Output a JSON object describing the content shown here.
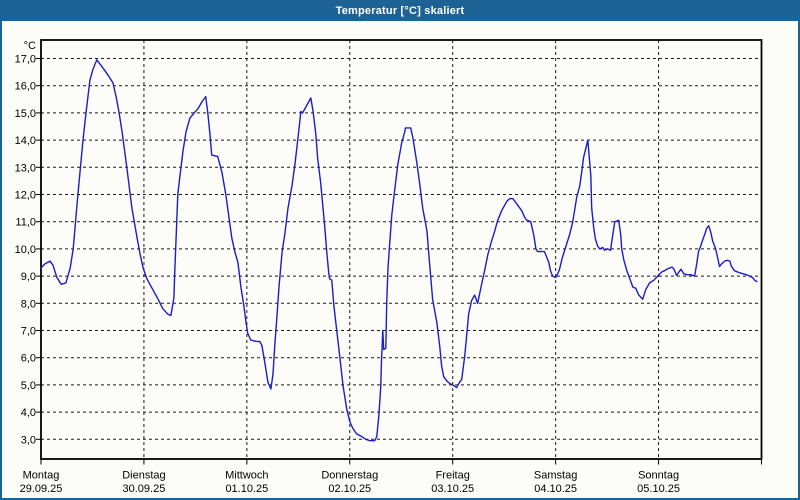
{
  "window": {
    "title": "Temperatur [°C] skaliert",
    "titlebar_color": "#1d6295",
    "border_color": "#1d6295",
    "background_color": "#fcfdf8"
  },
  "chart_data": {
    "type": "line",
    "title": "Temperatur [°C] skaliert",
    "grid": "dashed",
    "legend": "none",
    "line_color": "#1c1cc8",
    "grid_color": "#1a1a1a",
    "y_axis": {
      "unit": "°C",
      "range": [
        3,
        17
      ],
      "tick_values": [
        17,
        16,
        15,
        14,
        13,
        12,
        11,
        10,
        9,
        8,
        7,
        6,
        5,
        4,
        3
      ],
      "tick_labels": [
        "17,0",
        "16,0",
        "15,0",
        "14,0",
        "13,0",
        "12,0",
        "11,0",
        "10,0",
        "9,0",
        "8,0",
        "7,0",
        "6,0",
        "5,0",
        "4,0",
        "3,0"
      ]
    },
    "x_axis": {
      "num_days": 7,
      "hours_per_day": 24,
      "tick_labels": [
        {
          "weekday": "Montag",
          "date": "29.09.25"
        },
        {
          "weekday": "Dienstag",
          "date": "30.09.25"
        },
        {
          "weekday": "Mittwoch",
          "date": "01.10.25"
        },
        {
          "weekday": "Donnerstag",
          "date": "02.10.25"
        },
        {
          "weekday": "Freitag",
          "date": "03.10.25"
        },
        {
          "weekday": "Samstag",
          "date": "04.10.25"
        },
        {
          "weekday": "Sonntag",
          "date": "05.10.25"
        }
      ]
    },
    "series": [
      {
        "name": "Temperatur",
        "unit": "°C",
        "x_unit": "hours_since_monday_00",
        "points": [
          [
            0,
            9.3
          ],
          [
            0.9,
            9.45
          ],
          [
            2.1,
            9.55
          ],
          [
            2.8,
            9.4
          ],
          [
            3.7,
            8.95
          ],
          [
            4.7,
            8.7
          ],
          [
            5.8,
            8.75
          ],
          [
            6.8,
            9.3
          ],
          [
            7.5,
            10
          ],
          [
            8.6,
            12
          ],
          [
            9.8,
            14
          ],
          [
            10.5,
            15
          ],
          [
            11.4,
            16.2
          ],
          [
            12.1,
            16.6
          ],
          [
            13,
            16.95
          ],
          [
            14,
            16.75
          ],
          [
            14.9,
            16.55
          ],
          [
            15.8,
            16.35
          ],
          [
            16.8,
            16.1
          ],
          [
            17.5,
            15.6
          ],
          [
            18.2,
            15
          ],
          [
            18.9,
            14.3
          ],
          [
            20,
            13
          ],
          [
            21.2,
            11.5
          ],
          [
            22.4,
            10.4
          ],
          [
            23.1,
            9.8
          ],
          [
            23.8,
            9.3
          ],
          [
            24.7,
            8.9
          ],
          [
            25.9,
            8.55
          ],
          [
            27.3,
            8.15
          ],
          [
            28.4,
            7.8
          ],
          [
            29.6,
            7.6
          ],
          [
            30.3,
            7.55
          ],
          [
            31,
            8.2
          ],
          [
            31.2,
            9.2
          ],
          [
            31.5,
            10.4
          ],
          [
            31.9,
            12
          ],
          [
            32.4,
            12.7
          ],
          [
            33.1,
            13.6
          ],
          [
            33.8,
            14.3
          ],
          [
            34.7,
            14.8
          ],
          [
            35.7,
            15
          ],
          [
            36.6,
            15.15
          ],
          [
            37.5,
            15.4
          ],
          [
            38.4,
            15.6
          ],
          [
            38.9,
            15
          ],
          [
            39.4,
            14.2
          ],
          [
            39.8,
            13.45
          ],
          [
            41.2,
            13.4
          ],
          [
            42.2,
            12.8
          ],
          [
            43.1,
            12
          ],
          [
            43.8,
            11.2
          ],
          [
            44.5,
            10.4
          ],
          [
            45.2,
            9.9
          ],
          [
            45.9,
            9.5
          ],
          [
            46.6,
            8.6
          ],
          [
            47.3,
            7.9
          ],
          [
            47.8,
            7.3
          ],
          [
            48.2,
            6.9
          ],
          [
            48.9,
            6.65
          ],
          [
            50.1,
            6.6
          ],
          [
            51,
            6.6
          ],
          [
            51.5,
            6.45
          ],
          [
            52.2,
            5.8
          ],
          [
            52.9,
            5.1
          ],
          [
            53.6,
            4.85
          ],
          [
            54.1,
            5.4
          ],
          [
            54.5,
            6.4
          ],
          [
            55,
            7.5
          ],
          [
            55.5,
            8.6
          ],
          [
            56.2,
            9.85
          ],
          [
            56.9,
            10.6
          ],
          [
            57.6,
            11.5
          ],
          [
            58.5,
            12.3
          ],
          [
            59.2,
            13.1
          ],
          [
            59.9,
            14.05
          ],
          [
            60.6,
            15.05
          ],
          [
            61,
            15
          ],
          [
            61.7,
            15.2
          ],
          [
            62.9,
            15.55
          ],
          [
            63.4,
            15.1
          ],
          [
            64.1,
            14.2
          ],
          [
            64.5,
            13.35
          ],
          [
            65.2,
            12.45
          ],
          [
            65.7,
            11.6
          ],
          [
            66.2,
            10.75
          ],
          [
            66.6,
            9.95
          ],
          [
            67.1,
            9.1
          ],
          [
            67.3,
            8.9
          ],
          [
            67.8,
            8.85
          ],
          [
            68.3,
            7.9
          ],
          [
            69,
            6.95
          ],
          [
            69.7,
            6
          ],
          [
            70.4,
            5
          ],
          [
            71.3,
            4.1
          ],
          [
            72,
            3.65
          ],
          [
            72.7,
            3.4
          ],
          [
            73.6,
            3.2
          ],
          [
            74.8,
            3.1
          ],
          [
            75.7,
            3
          ],
          [
            76.7,
            2.95
          ],
          [
            77.8,
            2.95
          ],
          [
            78.3,
            3.1
          ],
          [
            78.8,
            3.9
          ],
          [
            79.2,
            4.9
          ],
          [
            79.4,
            5.9
          ],
          [
            79.7,
            7
          ],
          [
            79.9,
            6.3
          ],
          [
            80.4,
            6.35
          ],
          [
            80.6,
            8
          ],
          [
            80.9,
            9.3
          ],
          [
            81.3,
            10.2
          ],
          [
            81.8,
            11.25
          ],
          [
            82.5,
            12.2
          ],
          [
            83.2,
            13.1
          ],
          [
            84.1,
            13.9
          ],
          [
            84.8,
            14.3
          ],
          [
            85,
            14.45
          ],
          [
            86.2,
            14.45
          ],
          [
            86.7,
            14.1
          ],
          [
            87.6,
            13.2
          ],
          [
            88.3,
            12.4
          ],
          [
            89,
            11.5
          ],
          [
            90,
            10.65
          ],
          [
            90.4,
            9.85
          ],
          [
            91.3,
            8.15
          ],
          [
            92.3,
            7.3
          ],
          [
            93,
            6.4
          ],
          [
            93.4,
            5.7
          ],
          [
            93.9,
            5.3
          ],
          [
            94.6,
            5.15
          ],
          [
            95.3,
            5.05
          ],
          [
            96,
            5
          ],
          [
            96.9,
            4.9
          ],
          [
            97.6,
            5.1
          ],
          [
            98.1,
            5.2
          ],
          [
            98.8,
            6.05
          ],
          [
            99.3,
            6.9
          ],
          [
            99.7,
            7.6
          ],
          [
            100.4,
            8.1
          ],
          [
            101.1,
            8.3
          ],
          [
            101.8,
            8
          ],
          [
            102.8,
            8.75
          ],
          [
            103.5,
            9.25
          ],
          [
            104.2,
            9.8
          ],
          [
            105.1,
            10.3
          ],
          [
            105.8,
            10.65
          ],
          [
            106.5,
            11.05
          ],
          [
            107.4,
            11.4
          ],
          [
            108.6,
            11.75
          ],
          [
            109.3,
            11.85
          ],
          [
            110,
            11.85
          ],
          [
            111.2,
            11.6
          ],
          [
            112.1,
            11.4
          ],
          [
            112.8,
            11.15
          ],
          [
            113.3,
            11.05
          ],
          [
            114.2,
            11
          ],
          [
            114.9,
            10.5
          ],
          [
            115.4,
            10
          ],
          [
            115.8,
            9.9
          ],
          [
            117.4,
            9.9
          ],
          [
            117.7,
            9.78
          ],
          [
            118.4,
            9.5
          ],
          [
            118.8,
            9.2
          ],
          [
            119.3,
            9
          ],
          [
            120,
            8.95
          ],
          [
            120.5,
            9.1
          ],
          [
            120.9,
            9.25
          ],
          [
            121.6,
            9.7
          ],
          [
            122.6,
            10.2
          ],
          [
            123.3,
            10.55
          ],
          [
            124,
            11
          ],
          [
            124.9,
            11.9
          ],
          [
            125.6,
            12.3
          ],
          [
            126.1,
            12.85
          ],
          [
            126.5,
            13.35
          ],
          [
            127.2,
            13.8
          ],
          [
            127.5,
            14
          ],
          [
            128.2,
            12.7
          ],
          [
            128.4,
            11.5
          ],
          [
            128.9,
            10.75
          ],
          [
            129.3,
            10.35
          ],
          [
            129.8,
            10.1
          ],
          [
            130.3,
            10
          ],
          [
            131,
            10.05
          ],
          [
            131.4,
            9.95
          ],
          [
            132.1,
            10
          ],
          [
            132.8,
            9.95
          ],
          [
            133.3,
            10.5
          ],
          [
            133.8,
            11
          ],
          [
            134.7,
            11.05
          ],
          [
            135.2,
            10.5
          ],
          [
            135.4,
            10
          ],
          [
            135.9,
            9.6
          ],
          [
            136.6,
            9.2
          ],
          [
            137.3,
            8.9
          ],
          [
            138,
            8.6
          ],
          [
            138.7,
            8.55
          ],
          [
            139.4,
            8.3
          ],
          [
            140.3,
            8.15
          ],
          [
            141,
            8.5
          ],
          [
            141.9,
            8.75
          ],
          [
            142.9,
            8.85
          ],
          [
            143.8,
            9
          ],
          [
            144.7,
            9.15
          ],
          [
            145.4,
            9.2
          ],
          [
            146.1,
            9.27
          ],
          [
            147.1,
            9.33
          ],
          [
            147.5,
            9.28
          ],
          [
            148.2,
            9.03
          ],
          [
            149.2,
            9.25
          ],
          [
            149.9,
            9.08
          ],
          [
            150.6,
            9.05
          ],
          [
            151.5,
            9.05
          ],
          [
            152.4,
            9
          ],
          [
            152.9,
            9.45
          ],
          [
            153.3,
            9.9
          ],
          [
            153.8,
            10.1
          ],
          [
            154.3,
            10.33
          ],
          [
            154.8,
            10.55
          ],
          [
            155.2,
            10.75
          ],
          [
            155.7,
            10.85
          ],
          [
            156.1,
            10.65
          ],
          [
            156.6,
            10.3
          ],
          [
            157.3,
            10
          ],
          [
            157.8,
            9.65
          ],
          [
            158.2,
            9.35
          ],
          [
            158.7,
            9.45
          ],
          [
            159.4,
            9.55
          ],
          [
            160.1,
            9.58
          ],
          [
            160.6,
            9.55
          ],
          [
            161,
            9.35
          ],
          [
            161.7,
            9.2
          ],
          [
            162.4,
            9.15
          ],
          [
            163.4,
            9.1
          ],
          [
            164.5,
            9.05
          ],
          [
            165.2,
            9
          ],
          [
            165.9,
            8.95
          ],
          [
            166.4,
            8.85
          ],
          [
            166.9,
            8.8
          ]
        ]
      }
    ]
  }
}
